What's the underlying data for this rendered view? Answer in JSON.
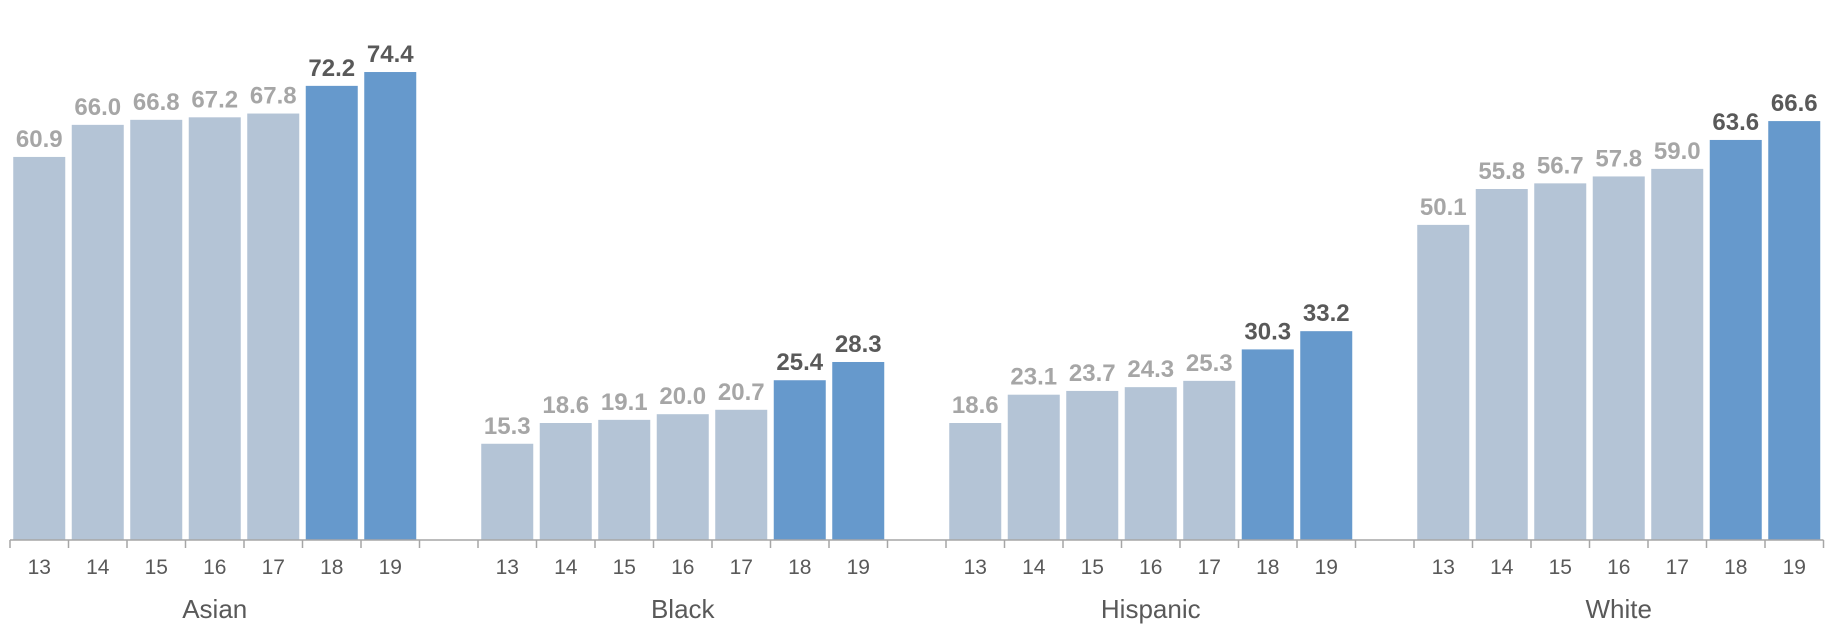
{
  "chart_data": {
    "type": "bar",
    "groups": [
      {
        "name": "Asian",
        "categories": [
          "13",
          "14",
          "15",
          "16",
          "17",
          "18",
          "19"
        ],
        "values": [
          60.9,
          66.0,
          66.8,
          67.2,
          67.8,
          72.2,
          74.4
        ]
      },
      {
        "name": "Black",
        "categories": [
          "13",
          "14",
          "15",
          "16",
          "17",
          "18",
          "19"
        ],
        "values": [
          15.3,
          18.6,
          19.1,
          20.0,
          20.7,
          25.4,
          28.3
        ]
      },
      {
        "name": "Hispanic",
        "categories": [
          "13",
          "14",
          "15",
          "16",
          "17",
          "18",
          "19"
        ],
        "values": [
          18.6,
          23.1,
          23.7,
          24.3,
          25.3,
          30.3,
          33.2
        ]
      },
      {
        "name": "White",
        "categories": [
          "13",
          "14",
          "15",
          "16",
          "17",
          "18",
          "19"
        ],
        "values": [
          50.1,
          55.8,
          56.7,
          57.8,
          59.0,
          63.6,
          66.6
        ]
      }
    ],
    "highlighted_categories": [
      "18",
      "19"
    ],
    "ylim": [
      0,
      80
    ],
    "grid": false,
    "colors": {
      "bar_default": "#b4c4d6",
      "bar_highlight": "#6699cc",
      "label_default": "#a6a6a6",
      "label_highlight": "#595959",
      "axis": "#a6a6a6"
    }
  }
}
